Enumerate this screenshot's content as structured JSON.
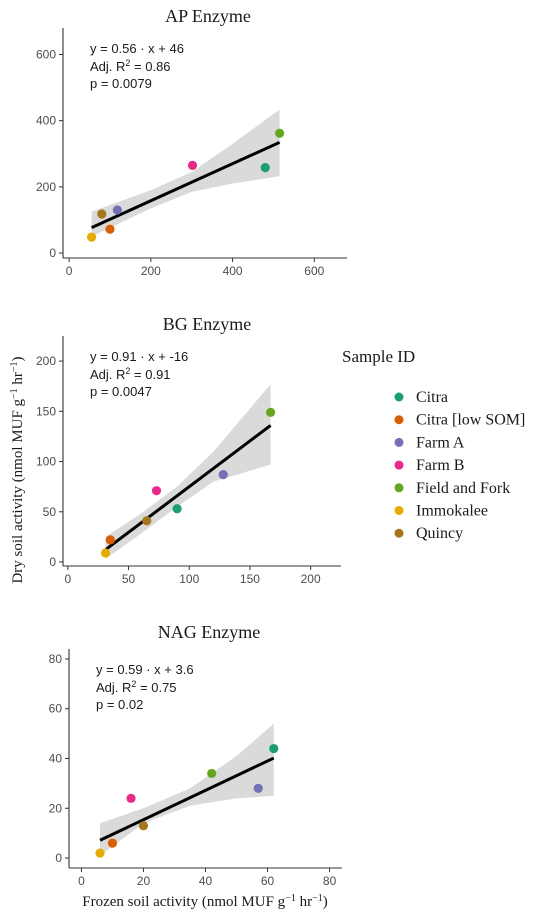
{
  "figure": {
    "y_label": "Dry soil activity (nmol MUF g",
    "y_label_sup1": "−1",
    "y_label_mid": " hr",
    "y_label_sup2": "−1",
    "y_label_end": ")",
    "x_label": "Frozen soil activity (nmol MUF g",
    "x_label_sup1": "−1",
    "x_label_mid": " hr",
    "x_label_sup2": "−1",
    "x_label_end": ")"
  },
  "legend": {
    "title": "Sample ID",
    "items": [
      {
        "label": "Citra",
        "color": "#1b9e77"
      },
      {
        "label": "Citra [low SOM]",
        "color": "#d95f02"
      },
      {
        "label": "Farm A",
        "color": "#7570b3"
      },
      {
        "label": "Farm B",
        "color": "#e7298a"
      },
      {
        "label": "Field and Fork",
        "color": "#66a61e"
      },
      {
        "label": "Immokalee",
        "color": "#e6ab02"
      },
      {
        "label": "Quincy",
        "color": "#a6761d"
      }
    ]
  },
  "chart_data": [
    {
      "type": "scatter",
      "title": "AP Enzyme",
      "xlim": [
        -15,
        680
      ],
      "ylim": [
        -15,
        680
      ],
      "xticks": [
        0,
        200,
        400,
        600
      ],
      "yticks": [
        0,
        200,
        400,
        600
      ],
      "equation": "y = 0.56 · x + 46",
      "r2_prefix": "Adj.  R",
      "r2_sup": "2",
      "r2_value": " = 0.86",
      "p_value": "p = 0.0079",
      "fit": {
        "slope": 0.56,
        "intercept": 46
      },
      "band": [
        {
          "x": 55,
          "lo": 50,
          "hi": 125
        },
        {
          "x": 200,
          "lo": 135,
          "hi": 190
        },
        {
          "x": 300,
          "lo": 185,
          "hi": 245
        },
        {
          "x": 400,
          "lo": 210,
          "hi": 330
        },
        {
          "x": 515,
          "lo": 232,
          "hi": 434
        }
      ],
      "points": [
        {
          "sample": "Citra",
          "x": 480,
          "y": 258
        },
        {
          "sample": "Citra [low SOM]",
          "x": 100,
          "y": 72
        },
        {
          "sample": "Farm A",
          "x": 118,
          "y": 130
        },
        {
          "sample": "Farm B",
          "x": 302,
          "y": 265
        },
        {
          "sample": "Field and Fork",
          "x": 515,
          "y": 362
        },
        {
          "sample": "Immokalee",
          "x": 55,
          "y": 48
        },
        {
          "sample": "Quincy",
          "x": 80,
          "y": 118
        }
      ]
    },
    {
      "type": "scatter",
      "title": "BG Enzyme",
      "xlim": [
        -4,
        225
      ],
      "ylim": [
        -4,
        225
      ],
      "xticks": [
        0,
        50,
        100,
        150,
        200
      ],
      "yticks": [
        0,
        50,
        100,
        150,
        200
      ],
      "equation": "y = 0.91 · x + -16",
      "r2_prefix": "Adj.  R",
      "r2_sup": "2",
      "r2_value": " = 0.91",
      "p_value": "p = 0.0047",
      "fit": {
        "slope": 0.91,
        "intercept": -16
      },
      "band": [
        {
          "x": 31,
          "lo": 3,
          "hi": 25
        },
        {
          "x": 60,
          "lo": 28,
          "hi": 48
        },
        {
          "x": 90,
          "lo": 55,
          "hi": 75
        },
        {
          "x": 120,
          "lo": 80,
          "hi": 110
        },
        {
          "x": 167,
          "lo": 97,
          "hi": 177
        }
      ],
      "points": [
        {
          "sample": "Citra",
          "x": 90,
          "y": 53
        },
        {
          "sample": "Citra [low SOM]",
          "x": 35,
          "y": 22
        },
        {
          "sample": "Farm A",
          "x": 128,
          "y": 87
        },
        {
          "sample": "Farm B",
          "x": 73,
          "y": 71
        },
        {
          "sample": "Field and Fork",
          "x": 167,
          "y": 149
        },
        {
          "sample": "Immokalee",
          "x": 31,
          "y": 9
        },
        {
          "sample": "Quincy",
          "x": 65,
          "y": 41
        }
      ]
    },
    {
      "type": "scatter",
      "title": "NAG Enzyme",
      "xlim": [
        -4,
        84
      ],
      "ylim": [
        -4,
        84
      ],
      "xticks": [
        0,
        20,
        40,
        60,
        80
      ],
      "yticks": [
        0,
        20,
        40,
        60,
        80
      ],
      "equation": "y = 0.59 · x + 3.6",
      "r2_prefix": "Adj.  R",
      "r2_sup": "2",
      "r2_value": " = 0.75",
      "p_value": "p = 0.02",
      "fit": {
        "slope": 0.59,
        "intercept": 3.6
      },
      "band": [
        {
          "x": 6,
          "lo": 1,
          "hi": 14
        },
        {
          "x": 20,
          "lo": 14,
          "hi": 20
        },
        {
          "x": 35,
          "lo": 21,
          "hi": 28
        },
        {
          "x": 50,
          "lo": 24,
          "hi": 41
        },
        {
          "x": 62,
          "lo": 25,
          "hi": 54
        }
      ],
      "points": [
        {
          "sample": "Citra",
          "x": 62,
          "y": 44
        },
        {
          "sample": "Citra [low SOM]",
          "x": 10,
          "y": 6
        },
        {
          "sample": "Farm A",
          "x": 57,
          "y": 28
        },
        {
          "sample": "Farm B",
          "x": 16,
          "y": 24
        },
        {
          "sample": "Field and Fork",
          "x": 42,
          "y": 34
        },
        {
          "sample": "Immokalee",
          "x": 6,
          "y": 2
        },
        {
          "sample": "Quincy",
          "x": 20,
          "y": 13
        }
      ]
    }
  ]
}
